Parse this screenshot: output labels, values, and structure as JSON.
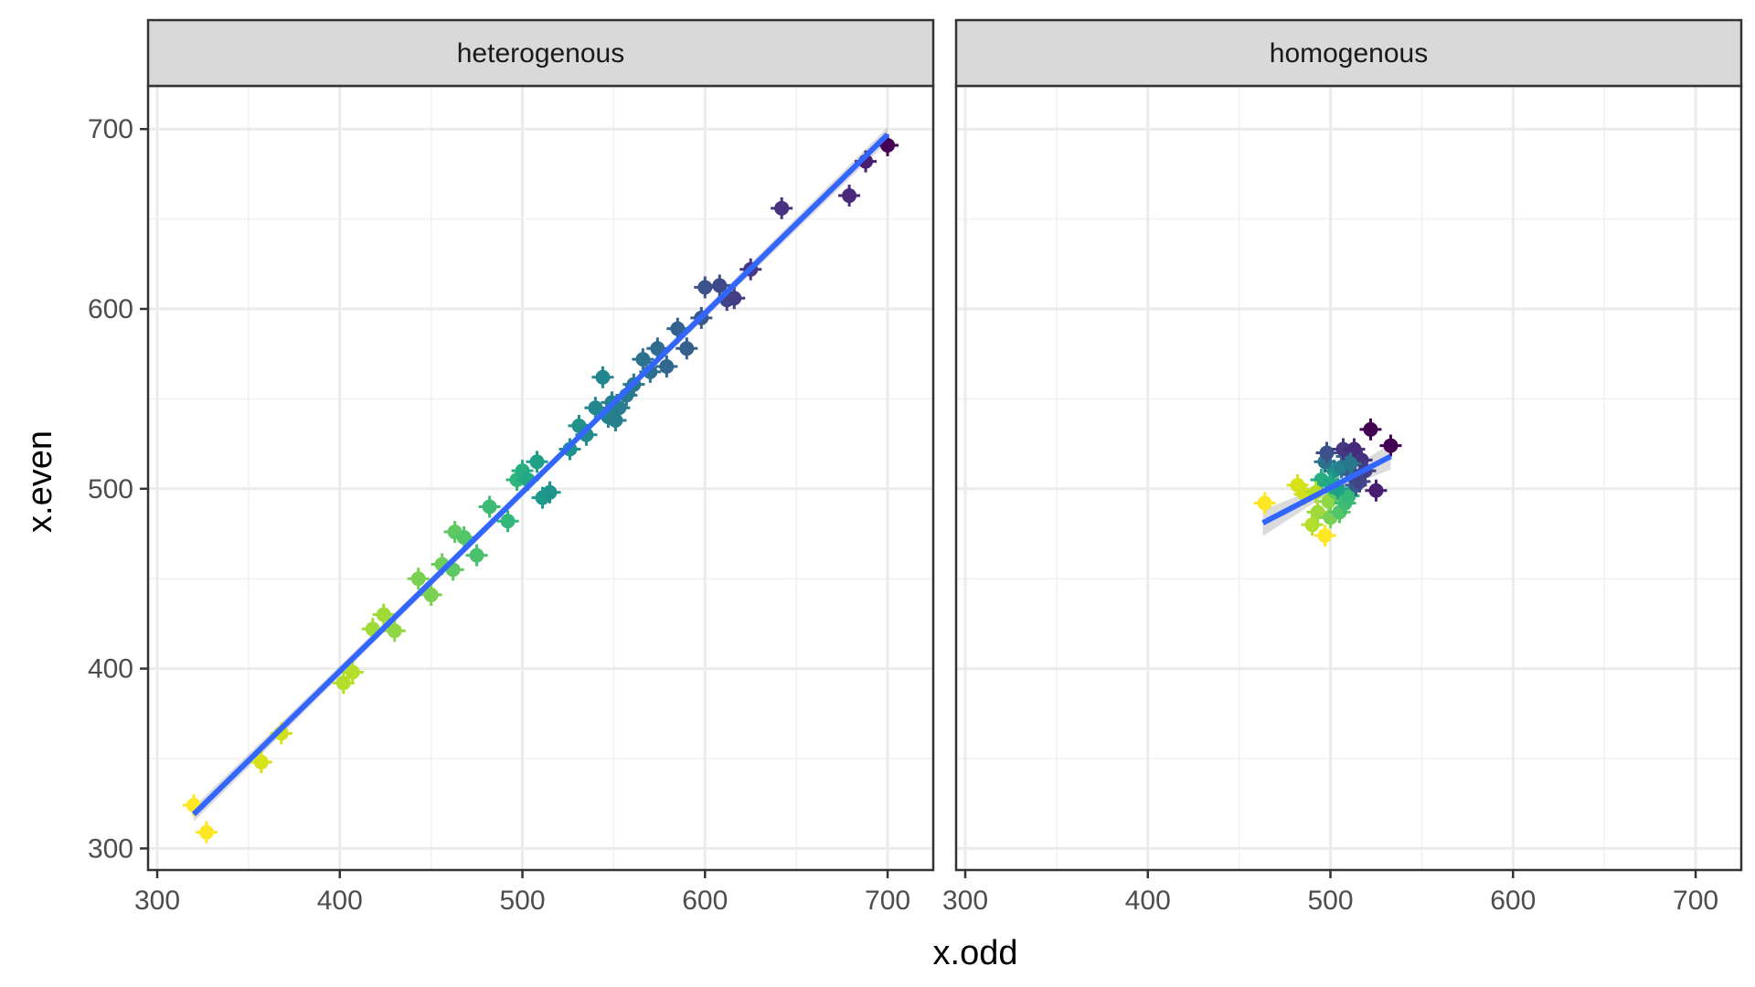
{
  "chart_data": {
    "type": "scatter",
    "xlabel": "x.odd",
    "ylabel": "x.even",
    "xlim": [
      295,
      725
    ],
    "ylim": [
      288,
      724
    ],
    "x_ticks": [
      300,
      400,
      500,
      600,
      700
    ],
    "y_ticks": [
      300,
      400,
      500,
      600,
      700
    ],
    "grid": true,
    "panels": [
      {
        "label": "heterogenous",
        "fit_line": {
          "x": [
            320,
            700
          ],
          "y": [
            319,
            697
          ]
        },
        "points": [
          [
            320,
            324,
            "#fde725"
          ],
          [
            327,
            309,
            "#fde725"
          ],
          [
            357,
            348,
            "#d8e219"
          ],
          [
            368,
            364,
            "#d0e11c"
          ],
          [
            402,
            392,
            "#b5de2b"
          ],
          [
            407,
            398,
            "#b5de2b"
          ],
          [
            418,
            422,
            "#a0da39"
          ],
          [
            424,
            430,
            "#a0da39"
          ],
          [
            430,
            421,
            "#8fd744"
          ],
          [
            443,
            450,
            "#7ad151"
          ],
          [
            450,
            441,
            "#7ad151"
          ],
          [
            456,
            458,
            "#6ccd5a"
          ],
          [
            462,
            455,
            "#5ec962"
          ],
          [
            463,
            476,
            "#5ec962"
          ],
          [
            468,
            473,
            "#52c569"
          ],
          [
            475,
            463,
            "#4ac16d"
          ],
          [
            482,
            490,
            "#3fbc73"
          ],
          [
            492,
            482,
            "#35b779"
          ],
          [
            497,
            505,
            "#2fb47c"
          ],
          [
            500,
            510,
            "#28ae80"
          ],
          [
            503,
            505,
            "#22a884"
          ],
          [
            508,
            515,
            "#1fa188"
          ],
          [
            511,
            495,
            "#1f9a8a"
          ],
          [
            515,
            498,
            "#1f948c"
          ],
          [
            526,
            522,
            "#20928c"
          ],
          [
            531,
            535,
            "#21918c"
          ],
          [
            535,
            530,
            "#228c8d"
          ],
          [
            540,
            545,
            "#23888e"
          ],
          [
            544,
            562,
            "#24868e"
          ],
          [
            547,
            540,
            "#25838e"
          ],
          [
            549,
            548,
            "#26818e"
          ],
          [
            551,
            538,
            "#277f8e"
          ],
          [
            553,
            545,
            "#287d8e"
          ],
          [
            557,
            552,
            "#297a8e"
          ],
          [
            561,
            558,
            "#2a788e"
          ],
          [
            566,
            572,
            "#2c728e"
          ],
          [
            570,
            565,
            "#2d708e"
          ],
          [
            574,
            578,
            "#2f6b8e"
          ],
          [
            579,
            568,
            "#31688e"
          ],
          [
            585,
            589,
            "#33638d"
          ],
          [
            590,
            578,
            "#355f8d"
          ],
          [
            598,
            595,
            "#38598c"
          ],
          [
            600,
            612,
            "#3b528b"
          ],
          [
            608,
            613,
            "#3e4a89"
          ],
          [
            612,
            605,
            "#414487"
          ],
          [
            616,
            606,
            "#433e85"
          ],
          [
            625,
            622,
            "#453781"
          ],
          [
            642,
            656,
            "#46327e"
          ],
          [
            679,
            663,
            "#472a7a"
          ],
          [
            688,
            682,
            "#481f70"
          ],
          [
            700,
            691,
            "#440154"
          ]
        ]
      },
      {
        "label": "homogenous",
        "fit_line": {
          "x": [
            463,
            533
          ],
          "y": [
            481,
            518
          ]
        },
        "points": [
          [
            464,
            492,
            "#fde725"
          ],
          [
            482,
            502,
            "#d8e219"
          ],
          [
            486,
            497,
            "#d0e11c"
          ],
          [
            490,
            480,
            "#b5de2b"
          ],
          [
            493,
            487,
            "#a0da39"
          ],
          [
            497,
            474,
            "#fde725"
          ],
          [
            499,
            493,
            "#8fd744"
          ],
          [
            500,
            484,
            "#7ad151"
          ],
          [
            503,
            498,
            "#5ec962"
          ],
          [
            505,
            487,
            "#52c569"
          ],
          [
            508,
            492,
            "#3fbc73"
          ],
          [
            510,
            496,
            "#35b779"
          ],
          [
            495,
            505,
            "#28ae80"
          ],
          [
            502,
            510,
            "#21918c"
          ],
          [
            497,
            515,
            "#2c728e"
          ],
          [
            498,
            520,
            "#3b528b"
          ],
          [
            506,
            512,
            "#26818e"
          ],
          [
            509,
            518,
            "#31688e"
          ],
          [
            512,
            508,
            "#355f8d"
          ],
          [
            514,
            502,
            "#38598c"
          ],
          [
            507,
            522,
            "#453781"
          ],
          [
            513,
            522,
            "#472a7a"
          ],
          [
            517,
            516,
            "#46327e"
          ],
          [
            519,
            510,
            "#433e85"
          ],
          [
            522,
            533,
            "#440154"
          ],
          [
            525,
            499,
            "#481f70"
          ],
          [
            533,
            524,
            "#440154"
          ],
          [
            504,
            500,
            "#1fa188"
          ],
          [
            500,
            503,
            "#22a884"
          ],
          [
            492,
            498,
            "#b5de2b"
          ],
          [
            511,
            514,
            "#2a788e"
          ],
          [
            516,
            504,
            "#414487"
          ]
        ]
      }
    ]
  }
}
